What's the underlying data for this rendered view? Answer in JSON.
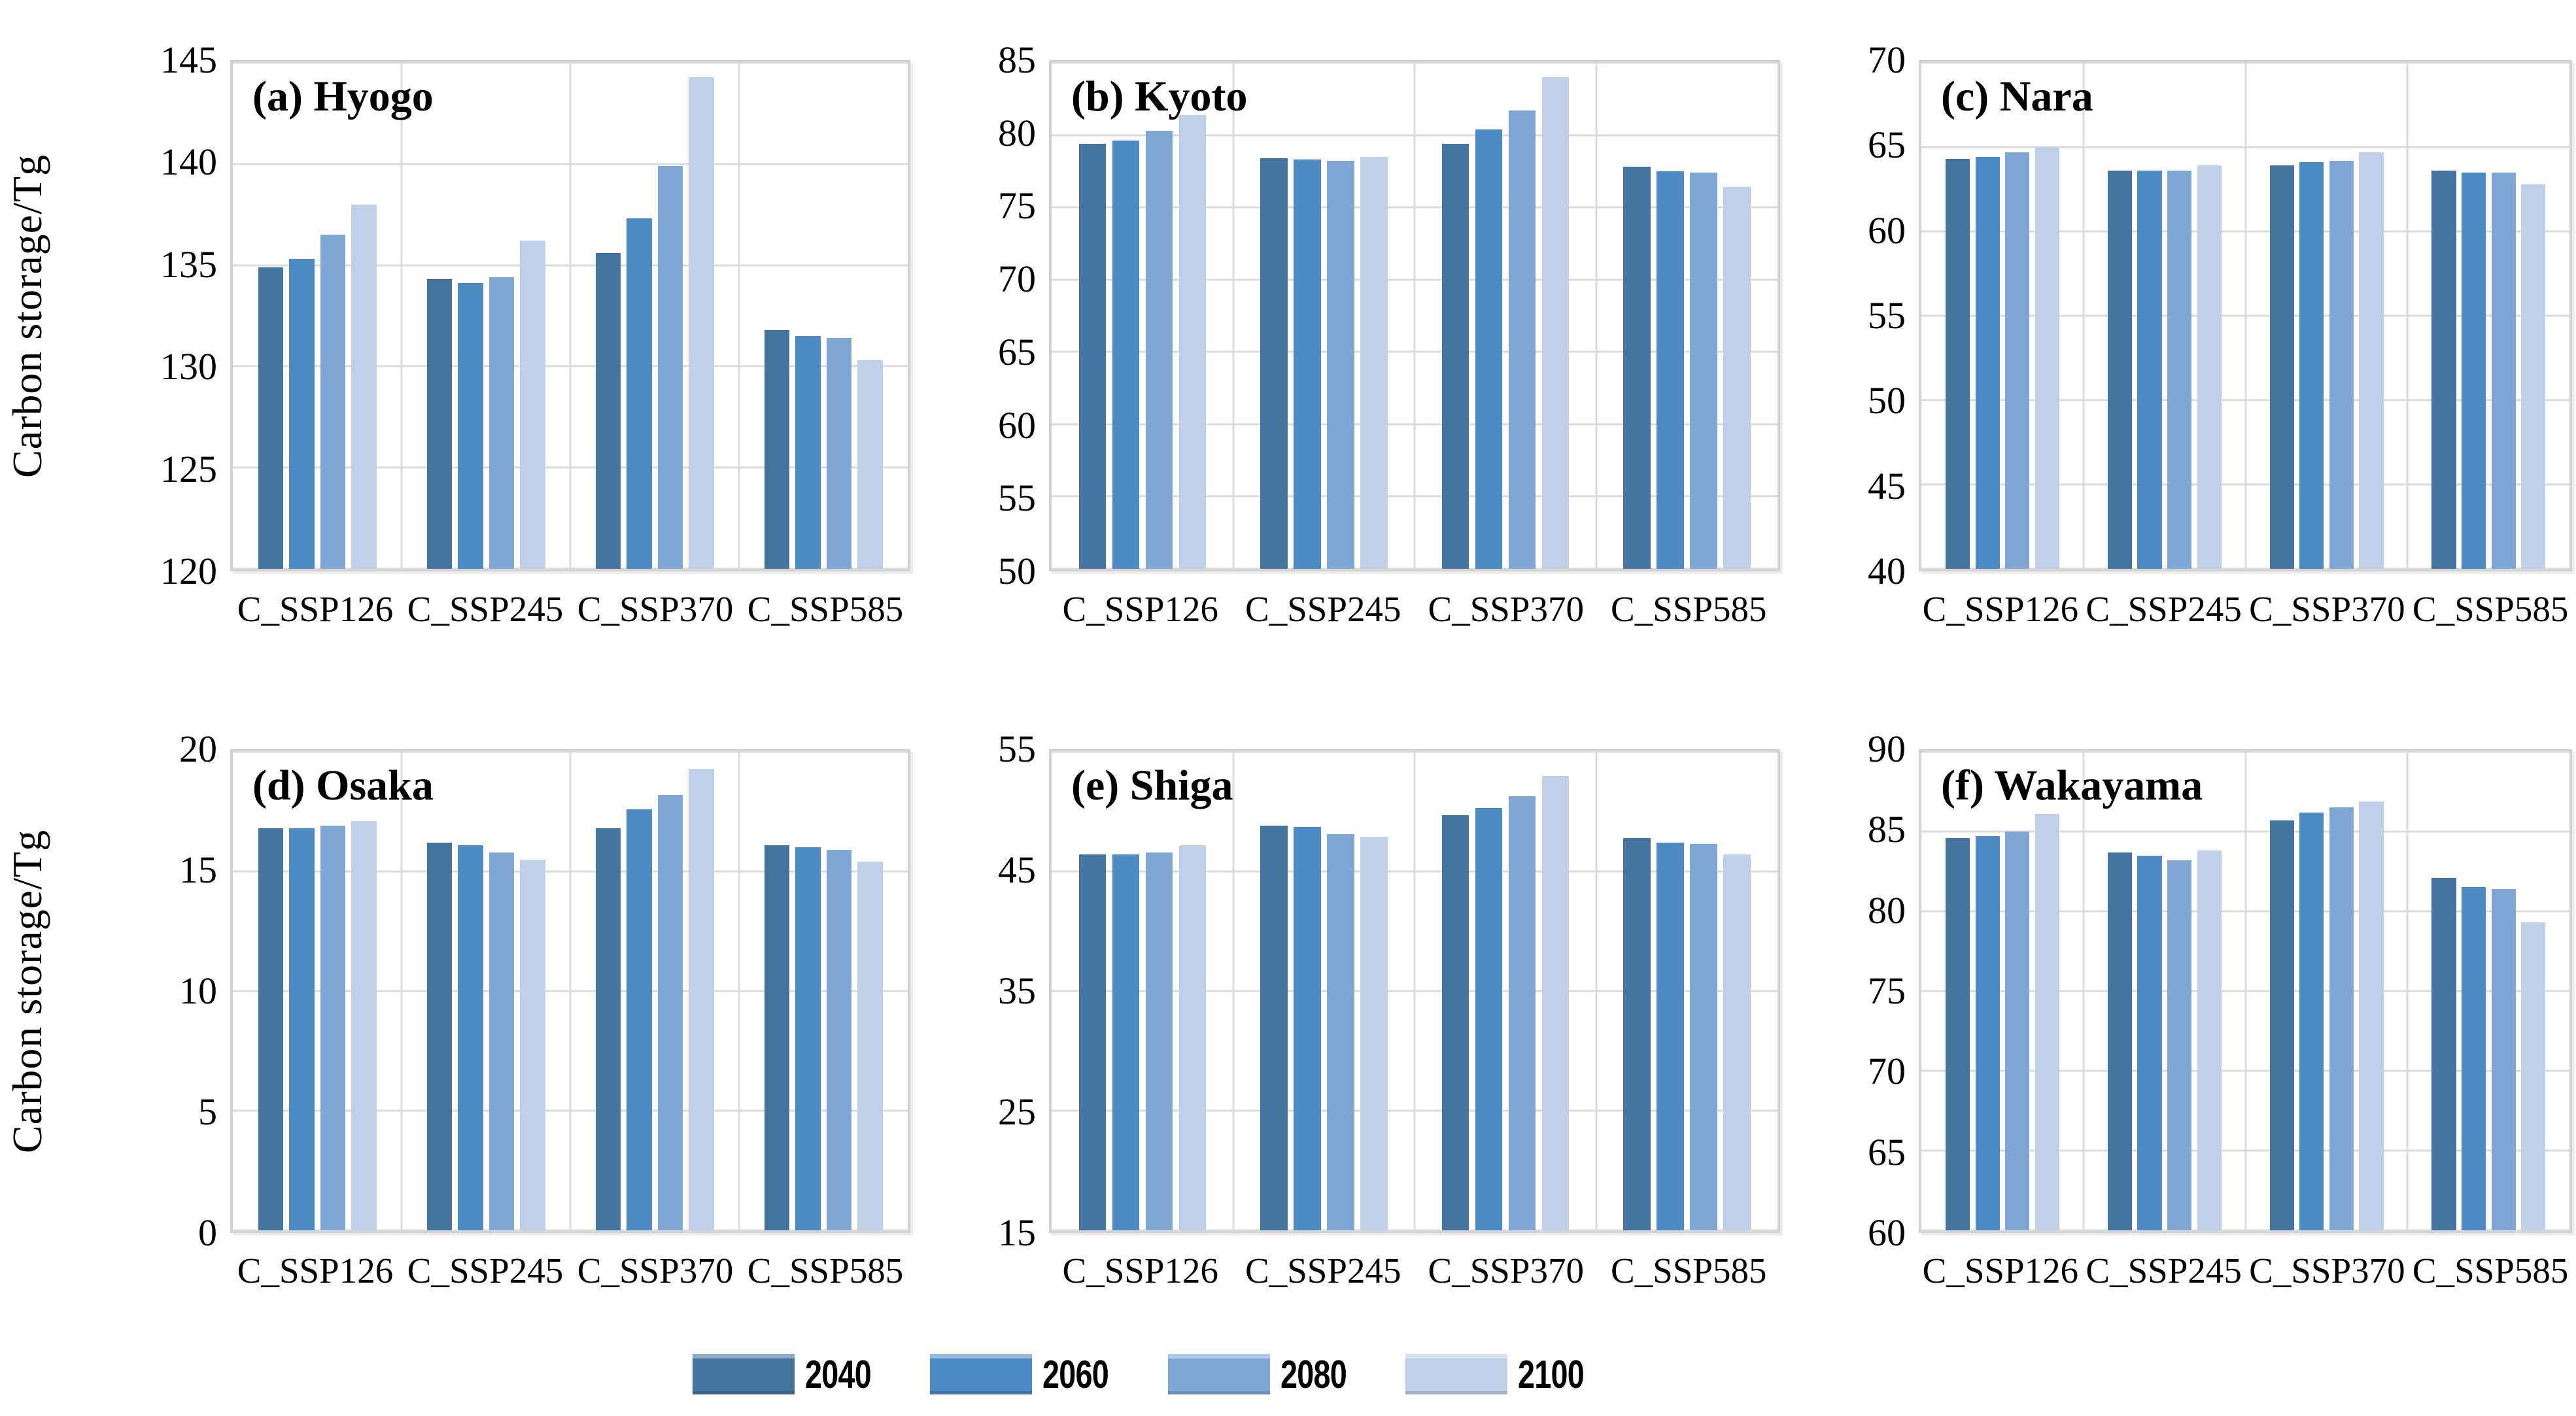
{
  "figure": {
    "background": "#FFFFFF",
    "y_axis_title": "Carbon storage/Tg",
    "legend": {
      "position": "bottom-center",
      "items": [
        {
          "label": "2040",
          "color": "#44749F"
        },
        {
          "label": "2060",
          "color": "#4E8AC3"
        },
        {
          "label": "2080",
          "color": "#7FA6D5"
        },
        {
          "label": "2100",
          "color": "#BFD0E8"
        }
      ]
    },
    "grid_color": "#DBDBDB",
    "border_color": "#D2D2D2"
  },
  "chart_data": [
    {
      "type": "bar",
      "panel": "a",
      "title": "(a) Hyogo",
      "ylabel": "Carbon storage/Tg",
      "ylim": [
        120,
        145
      ],
      "yticks": [
        145,
        140,
        135,
        130,
        125,
        120
      ],
      "grid": true,
      "categories": [
        "C_SSP126",
        "C_SSP245",
        "C_SSP370",
        "C_SSP585"
      ],
      "series": [
        {
          "name": "2040",
          "values": [
            134.9,
            134.3,
            135.6,
            131.8
          ]
        },
        {
          "name": "2060",
          "values": [
            135.3,
            134.1,
            137.3,
            131.5
          ]
        },
        {
          "name": "2080",
          "values": [
            136.5,
            134.4,
            139.9,
            131.4
          ]
        },
        {
          "name": "2100",
          "values": [
            138.0,
            136.2,
            144.3,
            130.3
          ]
        }
      ]
    },
    {
      "type": "bar",
      "panel": "b",
      "title": "(b)  Kyoto",
      "ylabel": null,
      "ylim": [
        50,
        85
      ],
      "yticks": [
        85,
        80,
        75,
        70,
        65,
        60,
        55,
        50
      ],
      "grid": true,
      "categories": [
        "C_SSP126",
        "C_SSP245",
        "C_SSP370",
        "C_SSP585"
      ],
      "series": [
        {
          "name": "2040",
          "values": [
            79.4,
            78.4,
            79.4,
            77.8
          ]
        },
        {
          "name": "2060",
          "values": [
            79.6,
            78.3,
            80.4,
            77.5
          ]
        },
        {
          "name": "2080",
          "values": [
            80.3,
            78.2,
            81.7,
            77.4
          ]
        },
        {
          "name": "2100",
          "values": [
            81.4,
            78.5,
            84.0,
            76.4
          ]
        }
      ]
    },
    {
      "type": "bar",
      "panel": "c",
      "title": "(c) Nara",
      "ylabel": null,
      "ylim": [
        40,
        70
      ],
      "yticks": [
        70,
        65,
        60,
        55,
        50,
        45,
        40
      ],
      "grid": true,
      "categories": [
        "C_SSP126",
        "C_SSP245",
        "C_SSP370",
        "C_SSP585"
      ],
      "series": [
        {
          "name": "2040",
          "values": [
            64.3,
            63.6,
            63.9,
            63.6
          ]
        },
        {
          "name": "2060",
          "values": [
            64.4,
            63.6,
            64.1,
            63.5
          ]
        },
        {
          "name": "2080",
          "values": [
            64.7,
            63.6,
            64.2,
            63.5
          ]
        },
        {
          "name": "2100",
          "values": [
            65.0,
            63.9,
            64.7,
            62.8
          ]
        }
      ]
    },
    {
      "type": "bar",
      "panel": "d",
      "title": "(d) Osaka",
      "ylabel": "Carbon storage/Tg",
      "ylim": [
        0,
        20
      ],
      "yticks": [
        20,
        15,
        10,
        5,
        0
      ],
      "grid": true,
      "categories": [
        "C_SSP126",
        "C_SSP245",
        "C_SSP370",
        "C_SSP585"
      ],
      "series": [
        {
          "name": "2040",
          "values": [
            16.8,
            16.2,
            16.8,
            16.1
          ]
        },
        {
          "name": "2060",
          "values": [
            16.8,
            16.1,
            17.6,
            16.0
          ]
        },
        {
          "name": "2080",
          "values": [
            16.9,
            15.8,
            18.2,
            15.9
          ]
        },
        {
          "name": "2100",
          "values": [
            17.1,
            15.5,
            19.3,
            15.4
          ]
        }
      ]
    },
    {
      "type": "bar",
      "panel": "e",
      "title": "(e)  Shiga",
      "ylabel": null,
      "ylim": [
        15,
        55
      ],
      "yticks": [
        55,
        45,
        35,
        25,
        15
      ],
      "grid": true,
      "categories": [
        "C_SSP126",
        "C_SSP245",
        "C_SSP370",
        "C_SSP585"
      ],
      "series": [
        {
          "name": "2040",
          "values": [
            46.4,
            48.8,
            49.7,
            47.8
          ]
        },
        {
          "name": "2060",
          "values": [
            46.4,
            48.7,
            50.3,
            47.4
          ]
        },
        {
          "name": "2080",
          "values": [
            46.6,
            48.1,
            51.3,
            47.3
          ]
        },
        {
          "name": "2100",
          "values": [
            47.2,
            47.9,
            53.0,
            46.4
          ]
        }
      ]
    },
    {
      "type": "bar",
      "panel": "f",
      "title": "(f) Wakayama",
      "ylabel": null,
      "ylim": [
        60,
        90
      ],
      "yticks": [
        90,
        85,
        80,
        75,
        70,
        65,
        60
      ],
      "grid": true,
      "categories": [
        "C_SSP126",
        "C_SSP245",
        "C_SSP370",
        "C_SSP585"
      ],
      "series": [
        {
          "name": "2040",
          "values": [
            84.6,
            83.7,
            85.7,
            82.1
          ]
        },
        {
          "name": "2060",
          "values": [
            84.7,
            83.5,
            86.2,
            81.5
          ]
        },
        {
          "name": "2080",
          "values": [
            85.0,
            83.2,
            86.5,
            81.4
          ]
        },
        {
          "name": "2100",
          "values": [
            86.1,
            83.8,
            86.9,
            79.3
          ]
        }
      ]
    }
  ]
}
